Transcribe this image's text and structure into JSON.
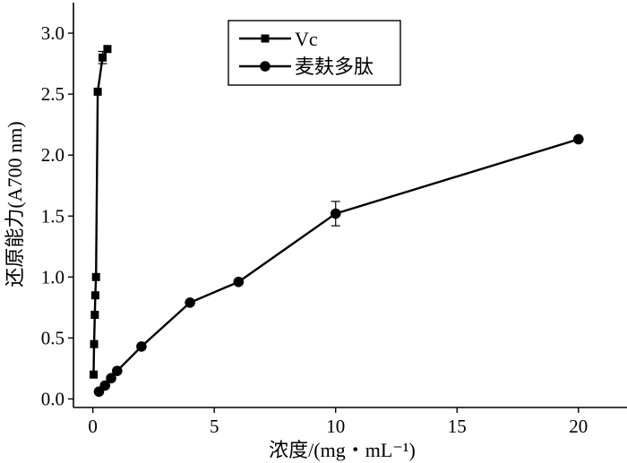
{
  "chart_data": {
    "type": "line",
    "xlabel": "浓度/(mg・mL⁻¹)",
    "ylabel": "还原能力(A700 nm)",
    "xlim": [
      -0.8,
      22
    ],
    "ylim": [
      -0.07,
      3.25
    ],
    "x_ticks": [
      0,
      5,
      10,
      15,
      20
    ],
    "y_ticks": [
      0.0,
      0.5,
      1.0,
      1.5,
      2.0,
      2.5,
      3.0
    ],
    "x_tick_labels": [
      "0",
      "5",
      "10",
      "15",
      "20"
    ],
    "y_tick_labels": [
      "0.0",
      "0.5",
      "1.0",
      "1.5",
      "2.0",
      "2.5",
      "3.0"
    ],
    "legend_position": "top-center",
    "grid": false,
    "series": [
      {
        "name": "Vc",
        "marker": "square",
        "color": "#000000",
        "x": [
          0.03,
          0.05,
          0.08,
          0.1,
          0.13,
          0.2,
          0.4,
          0.6
        ],
        "y": [
          0.2,
          0.45,
          0.69,
          0.85,
          1.0,
          2.52,
          2.8,
          2.87
        ],
        "err": [
          0.0,
          0.0,
          0.0,
          0.0,
          0.0,
          0.0,
          0.05,
          0.0
        ]
      },
      {
        "name": "麦麸多肽",
        "marker": "circle",
        "color": "#000000",
        "x": [
          0.25,
          0.5,
          0.75,
          1.0,
          2.0,
          4.0,
          6.0,
          10.0,
          20.0
        ],
        "y": [
          0.06,
          0.11,
          0.17,
          0.23,
          0.43,
          0.79,
          0.96,
          1.52,
          2.13
        ],
        "err": [
          0.0,
          0.0,
          0.0,
          0.0,
          0.0,
          0.0,
          0.0,
          0.1,
          0.0
        ]
      }
    ]
  }
}
